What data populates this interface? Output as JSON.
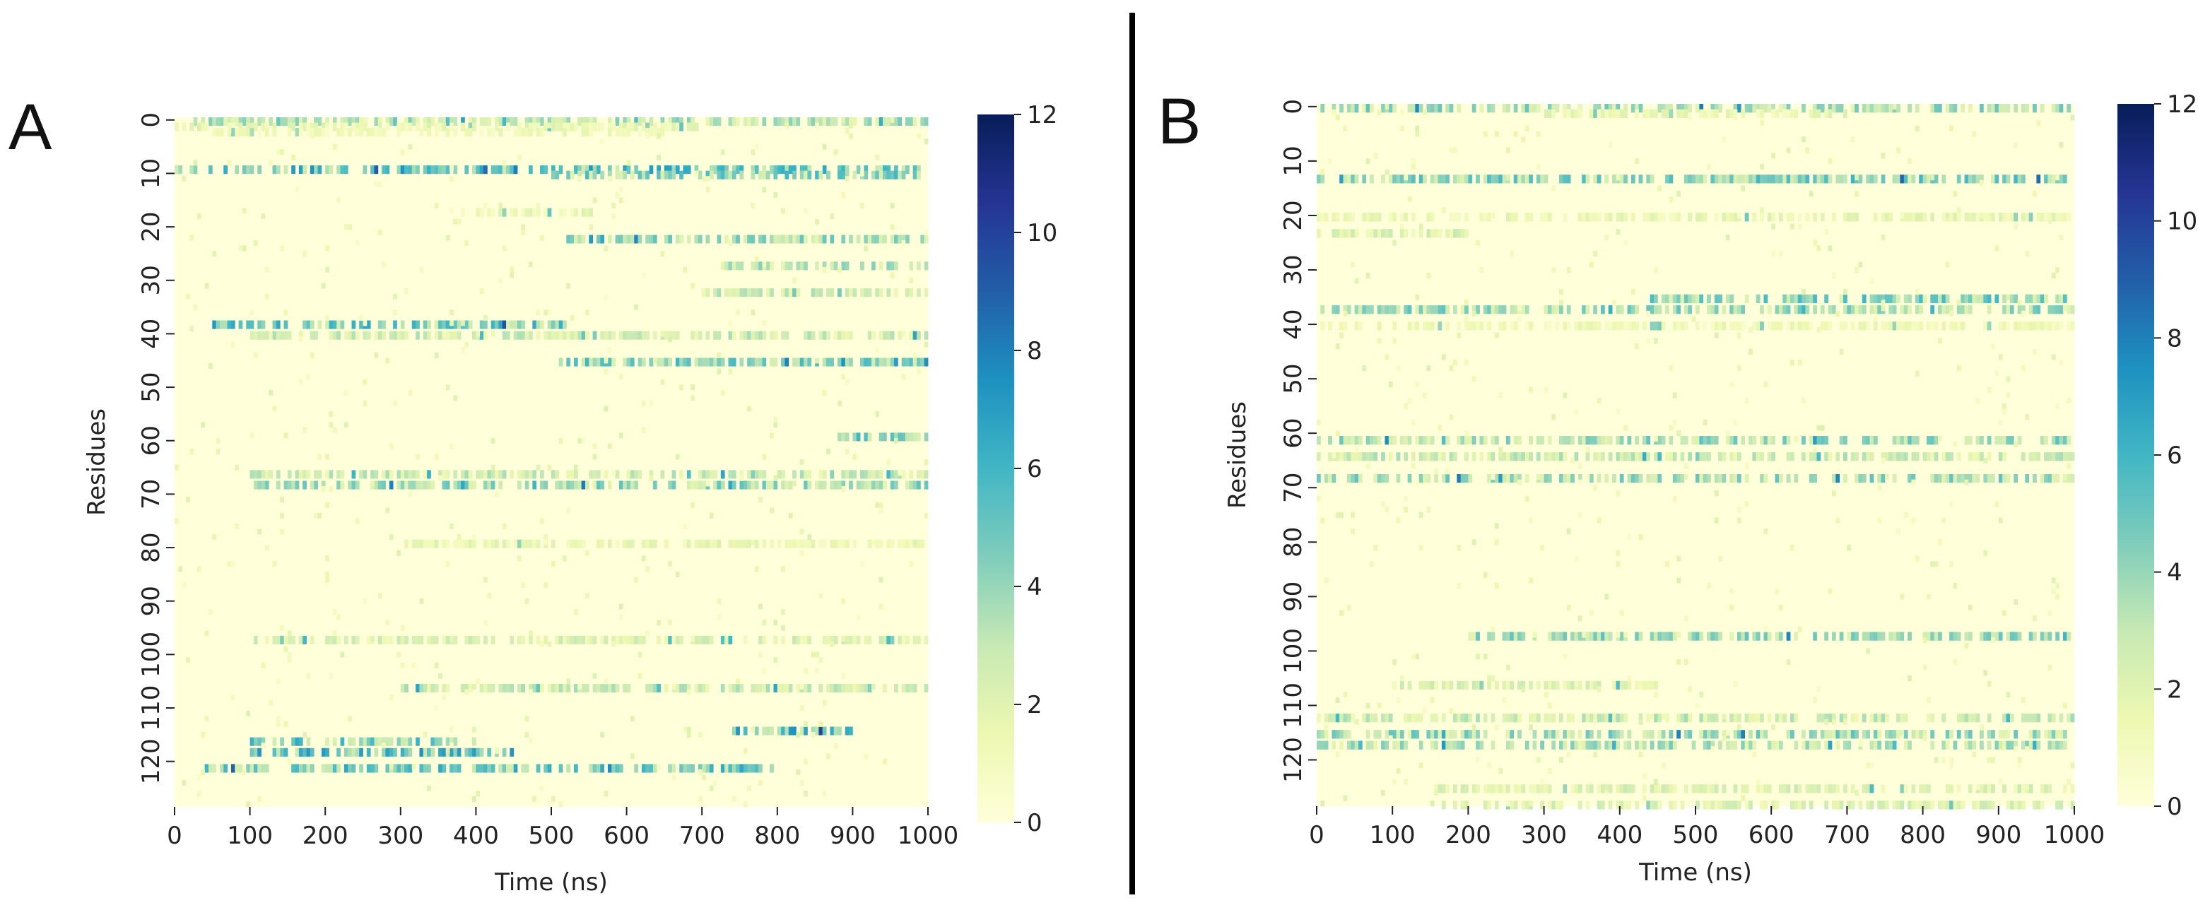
{
  "panels": [
    {
      "letter": "A",
      "heatmap": {
        "colorbar_ticks": [
          "0",
          "2",
          "4",
          "6",
          "8",
          "10",
          "12"
        ]
      }
    },
    {
      "letter": "B",
      "heatmap": {
        "colorbar_ticks": [
          "0",
          "2",
          "4",
          "6",
          "8",
          "10",
          "12"
        ]
      }
    }
  ],
  "chart_data": [
    {
      "type": "heatmap",
      "panel": "A",
      "xlabel": "Time (ns)",
      "ylabel": "Residues",
      "x_ticks": [
        0,
        100,
        200,
        300,
        400,
        500,
        600,
        700,
        800,
        900,
        1000
      ],
      "y_ticks": [
        0,
        10,
        20,
        30,
        40,
        50,
        60,
        70,
        80,
        90,
        100,
        110,
        120
      ],
      "xlim": [
        0,
        1000
      ],
      "ylim": [
        0,
        129
      ],
      "colorbar_range": [
        0,
        12
      ],
      "colormap": "YlGnBu",
      "colormap_colors": [
        "#ffffd9",
        "#edf8b1",
        "#c7e9b4",
        "#7fcdbb",
        "#41b6c4",
        "#1d91c0",
        "#225ea8",
        "#253494",
        "#081d58"
      ],
      "approx_residue_bands": [
        {
          "residue": 0,
          "time": [
            20,
            1000
          ],
          "level": 3
        },
        {
          "residue": 1,
          "time": [
            0,
            700
          ],
          "level": 1.5
        },
        {
          "residue": 2,
          "time": [
            50,
            650
          ],
          "level": 1.2
        },
        {
          "residue": 9,
          "time": [
            0,
            1000
          ],
          "level": 5
        },
        {
          "residue": 10,
          "time": [
            500,
            1000
          ],
          "level": 4
        },
        {
          "residue": 17,
          "time": [
            380,
            560
          ],
          "level": 1.5
        },
        {
          "residue": 22,
          "time": [
            520,
            1000
          ],
          "level": 3.5
        },
        {
          "residue": 27,
          "time": [
            720,
            1000
          ],
          "level": 3
        },
        {
          "residue": 32,
          "time": [
            700,
            1000
          ],
          "level": 2.5
        },
        {
          "residue": 38,
          "time": [
            50,
            520
          ],
          "level": 4.5
        },
        {
          "residue": 40,
          "time": [
            100,
            1000
          ],
          "level": 2.5
        },
        {
          "residue": 45,
          "time": [
            510,
            1000
          ],
          "level": 4
        },
        {
          "residue": 59,
          "time": [
            880,
            1000
          ],
          "level": 4
        },
        {
          "residue": 66,
          "time": [
            100,
            1000
          ],
          "level": 2.5
        },
        {
          "residue": 68,
          "time": [
            100,
            1000
          ],
          "level": 3.5
        },
        {
          "residue": 79,
          "time": [
            300,
            1000
          ],
          "level": 1.5
        },
        {
          "residue": 97,
          "time": [
            100,
            1000
          ],
          "level": 2
        },
        {
          "residue": 106,
          "time": [
            300,
            1000
          ],
          "level": 2.5
        },
        {
          "residue": 114,
          "time": [
            740,
            900
          ],
          "level": 5
        },
        {
          "residue": 116,
          "time": [
            100,
            400
          ],
          "level": 4.5
        },
        {
          "residue": 118,
          "time": [
            100,
            460
          ],
          "level": 5
        },
        {
          "residue": 121,
          "time": [
            40,
            800
          ],
          "level": 4.5
        }
      ]
    },
    {
      "type": "heatmap",
      "panel": "B",
      "xlabel": "Time (ns)",
      "ylabel": "Residues",
      "x_ticks": [
        0,
        100,
        200,
        300,
        400,
        500,
        600,
        700,
        800,
        900,
        1000
      ],
      "y_ticks": [
        0,
        10,
        20,
        30,
        40,
        50,
        60,
        70,
        80,
        90,
        100,
        110,
        120
      ],
      "xlim": [
        0,
        1000
      ],
      "ylim": [
        0,
        129
      ],
      "colorbar_range": [
        0,
        12
      ],
      "colormap": "YlGnBu",
      "colormap_colors": [
        "#ffffd9",
        "#edf8b1",
        "#c7e9b4",
        "#7fcdbb",
        "#41b6c4",
        "#1d91c0",
        "#225ea8",
        "#253494",
        "#081d58"
      ],
      "approx_residue_bands": [
        {
          "residue": 0,
          "time": [
            0,
            1000
          ],
          "level": 3.5
        },
        {
          "residue": 1,
          "time": [
            300,
            700
          ],
          "level": 1.5
        },
        {
          "residue": 13,
          "time": [
            0,
            1000
          ],
          "level": 4
        },
        {
          "residue": 20,
          "time": [
            0,
            1000
          ],
          "level": 1.5
        },
        {
          "residue": 23,
          "time": [
            0,
            200
          ],
          "level": 2
        },
        {
          "residue": 35,
          "time": [
            430,
            1000
          ],
          "level": 4
        },
        {
          "residue": 37,
          "time": [
            0,
            1000
          ],
          "level": 3.5
        },
        {
          "residue": 40,
          "time": [
            0,
            1000
          ],
          "level": 1.2
        },
        {
          "residue": 61,
          "time": [
            0,
            1000
          ],
          "level": 3.5
        },
        {
          "residue": 64,
          "time": [
            0,
            1000
          ],
          "level": 2.5
        },
        {
          "residue": 68,
          "time": [
            0,
            1000
          ],
          "level": 3.5
        },
        {
          "residue": 97,
          "time": [
            200,
            1000
          ],
          "level": 3.5
        },
        {
          "residue": 106,
          "time": [
            100,
            450
          ],
          "level": 2
        },
        {
          "residue": 112,
          "time": [
            0,
            1000
          ],
          "level": 2.5
        },
        {
          "residue": 115,
          "time": [
            0,
            1000
          ],
          "level": 3.5
        },
        {
          "residue": 117,
          "time": [
            0,
            1000
          ],
          "level": 3
        },
        {
          "residue": 125,
          "time": [
            150,
            1000
          ],
          "level": 2
        },
        {
          "residue": 128,
          "time": [
            150,
            1000
          ],
          "level": 2
        }
      ]
    }
  ]
}
